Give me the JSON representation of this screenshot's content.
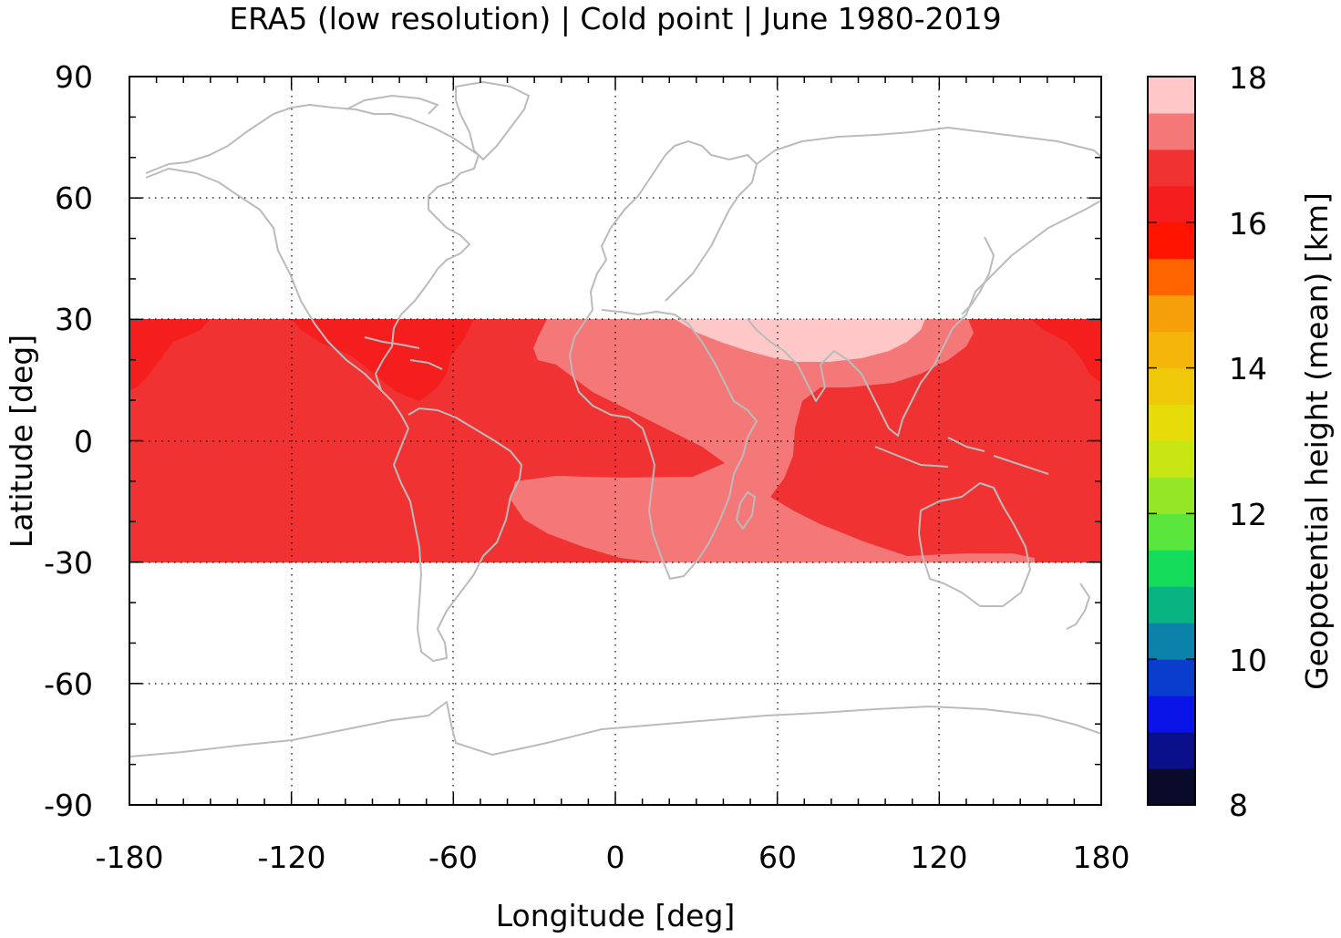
{
  "title": "ERA5 (low resolution) | Cold point | June 1980-2019",
  "chart_data": {
    "type": "heatmap",
    "title": "ERA5 (low resolution) | Cold point | June 1980-2019",
    "xlabel": "Longitude [deg]",
    "ylabel": "Latitude [deg]",
    "xlim": [
      -180,
      180
    ],
    "ylim": [
      -90,
      90
    ],
    "x_ticks": [
      "-180",
      "-120",
      "-60",
      "0",
      "60",
      "120",
      "180"
    ],
    "y_ticks": [
      "90",
      "60",
      "30",
      "0",
      "-30",
      "-60",
      "-90"
    ],
    "grid": true,
    "data_lat_range": [
      -30,
      30
    ],
    "colorbar": {
      "label": "Geopotential height (mean) [km]",
      "range": [
        8,
        18
      ],
      "ticks": [
        "18",
        "16",
        "14",
        "12",
        "10",
        "8"
      ],
      "colors": [
        "#0a0a2a",
        "#0a0f8a",
        "#0a14e6",
        "#0a3ccd",
        "#0a82aa",
        "#0ab482",
        "#14dc5a",
        "#5ae63c",
        "#96e628",
        "#c8e614",
        "#e6dc0a",
        "#f0c80a",
        "#f5b40a",
        "#f5a00a",
        "#ff6400",
        "#ff1400",
        "#f51e1e",
        "#f03232",
        "#f57878",
        "#ffc8c8"
      ]
    },
    "regions": [
      {
        "level": "16.4-16.6",
        "color": "#f03232",
        "description": "background tropical band"
      },
      {
        "level": "16.2-16.4",
        "color": "#f51e1e",
        "description": "Caribbean / central Pacific"
      },
      {
        "level": "16.6-17.0",
        "color": "#f57878",
        "description": "Africa, Arabian Sea, southern subtropics"
      },
      {
        "level": "17.0-17.4",
        "color": "#ffc8c8",
        "description": "Asian monsoon anticyclone"
      }
    ],
    "coastline_color": "#bbbbbb"
  }
}
